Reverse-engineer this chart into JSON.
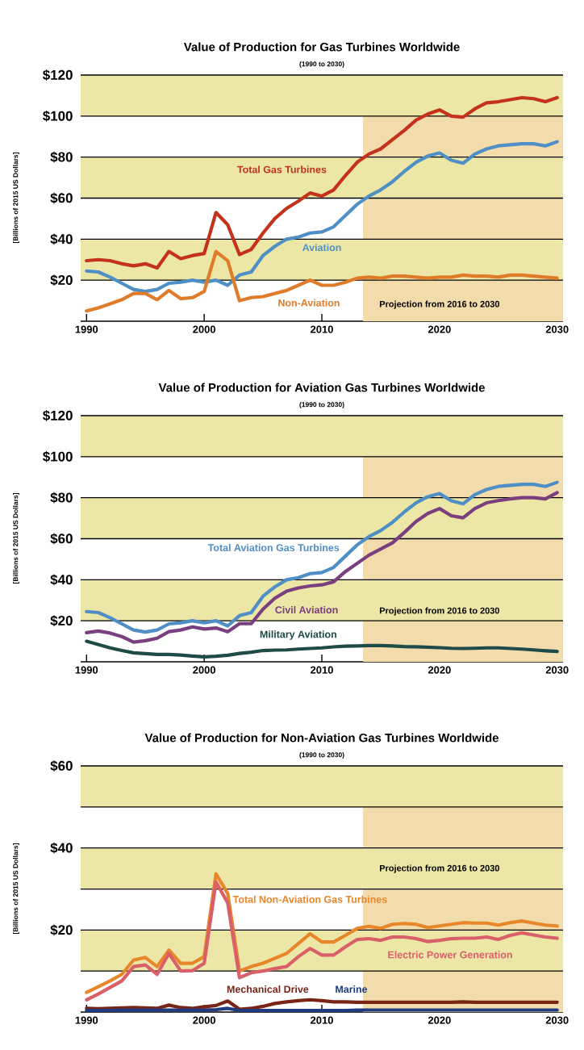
{
  "chart_data": [
    {
      "type": "line",
      "title": "Value of Production for Gas Turbines Worldwide",
      "subtitle": "(1990 to 2030)",
      "ylabel": "[Billions of 2015 US Dollars]",
      "x": [
        1990,
        1991,
        1992,
        1993,
        1994,
        1995,
        1996,
        1997,
        1998,
        1999,
        2000,
        2001,
        2002,
        2003,
        2004,
        2005,
        2006,
        2007,
        2008,
        2009,
        2010,
        2011,
        2012,
        2013,
        2014,
        2015,
        2016,
        2017,
        2018,
        2019,
        2020,
        2021,
        2022,
        2023,
        2024,
        2025,
        2026,
        2027,
        2028,
        2029,
        2030
      ],
      "series": [
        {
          "name": "Total Gas Turbines",
          "color": "#c4321c",
          "values": [
            29.5,
            30,
            29.5,
            28,
            27,
            28,
            26,
            34,
            30.5,
            32,
            33,
            53,
            47,
            32.5,
            35,
            43,
            50,
            55,
            58.5,
            62.5,
            61,
            64,
            71,
            77.5,
            81.5,
            84,
            88.5,
            93,
            98,
            101,
            103,
            100,
            99.5,
            103.5,
            106.5,
            107,
            108,
            109,
            108.5,
            107,
            109
          ]
        },
        {
          "name": "Aviation",
          "color": "#4f8fc6",
          "values": [
            24.5,
            24,
            21.5,
            18.5,
            15.5,
            14.5,
            15.5,
            18.5,
            19,
            20,
            19,
            20,
            17.5,
            22.5,
            24,
            32,
            36.5,
            40,
            41,
            43,
            43.5,
            46,
            51.5,
            57,
            61,
            64,
            68,
            73,
            77.5,
            80.5,
            82,
            78.5,
            77,
            81.5,
            84,
            85.5,
            86,
            86.5,
            86.5,
            85.5,
            87.5
          ]
        },
        {
          "name": "Non-Aviation",
          "color": "#e07b2a",
          "values": [
            5,
            6.5,
            8.5,
            10.5,
            13.5,
            13.5,
            10.5,
            15,
            11,
            11.5,
            14.5,
            34,
            29.5,
            10,
            11.5,
            12,
            13.5,
            15,
            17.5,
            20,
            17.5,
            17.5,
            19,
            21,
            21.5,
            21,
            22,
            22,
            21.5,
            21,
            21.5,
            21.5,
            22.5,
            22,
            22,
            21.5,
            22.5,
            22.5,
            22,
            21.5,
            21
          ]
        }
      ],
      "xlim": [
        1989.5,
        2030.5
      ],
      "ylim": [
        0,
        120
      ],
      "xticks": [
        1990,
        2000,
        2010,
        2020,
        2030
      ],
      "yticks": [
        {
          "value": 20,
          "label": "$20"
        },
        {
          "value": 40,
          "label": "$40"
        },
        {
          "value": 60,
          "label": "$60"
        },
        {
          "value": 80,
          "label": "$80"
        },
        {
          "value": 100,
          "label": "$100"
        },
        {
          "value": 120,
          "label": "$120"
        }
      ],
      "grid": "y",
      "bands": [
        {
          "axis": "x",
          "from": 2013.5,
          "to": 2030.5,
          "label": "Projection from 2016 to 2030",
          "color": "#f2dcac"
        },
        {
          "axis": "y",
          "from": 100,
          "to": 120,
          "color": "#ece7a6"
        },
        {
          "axis": "y",
          "from": 60,
          "to": 80,
          "color": "#ece7a6"
        },
        {
          "axis": "y",
          "from": 20,
          "to": 40,
          "color": "#ece7a6"
        }
      ]
    },
    {
      "type": "line",
      "title": "Value of Production for Aviation Gas Turbines Worldwide",
      "subtitle": "(1990 to 2030)",
      "ylabel": "[Billions of 2015 US Dollars]",
      "x": [
        1990,
        1991,
        1992,
        1993,
        1994,
        1995,
        1996,
        1997,
        1998,
        1999,
        2000,
        2001,
        2002,
        2003,
        2004,
        2005,
        2006,
        2007,
        2008,
        2009,
        2010,
        2011,
        2012,
        2013,
        2014,
        2015,
        2016,
        2017,
        2018,
        2019,
        2020,
        2021,
        2022,
        2023,
        2024,
        2025,
        2026,
        2027,
        2028,
        2029,
        2030
      ],
      "series": [
        {
          "name": "Total Aviation Gas Turbines",
          "color": "#4f8fc6",
          "values": [
            24.5,
            24,
            21.5,
            18.5,
            15.5,
            14.5,
            15.5,
            18.5,
            19,
            20,
            19,
            20,
            17.5,
            22.5,
            24,
            32,
            36.5,
            40,
            41,
            43,
            43.5,
            46,
            51.5,
            57,
            61,
            64,
            68,
            73,
            77.5,
            80.5,
            82,
            78.5,
            77,
            81.5,
            84,
            85.5,
            86,
            86.5,
            86.5,
            85.5,
            87.5
          ]
        },
        {
          "name": "Civil Aviation",
          "color": "#7a3f7e",
          "values": [
            14.2,
            15,
            14,
            12.3,
            9.6,
            10.3,
            11.5,
            14.7,
            15.5,
            17,
            16,
            16.5,
            14.7,
            18.6,
            18.6,
            25.7,
            31,
            34.4,
            36,
            37,
            37.5,
            39,
            44,
            48,
            52,
            55,
            58,
            63,
            68.4,
            72.3,
            74.7,
            71.2,
            70.2,
            74.7,
            77.5,
            78.6,
            79.4,
            80,
            80,
            79.4,
            82.5
          ]
        },
        {
          "name": "Military Aviation",
          "color": "#1e4a47",
          "values": [
            10,
            8.4,
            6.8,
            5.5,
            4.4,
            4,
            3.6,
            3.6,
            3.3,
            2.8,
            2.4,
            2.7,
            3.2,
            4.1,
            4.7,
            5.5,
            5.7,
            5.8,
            6.2,
            6.5,
            6.8,
            7.3,
            7.6,
            7.7,
            7.9,
            7.9,
            7.7,
            7.4,
            7.3,
            7.1,
            6.9,
            6.6,
            6.5,
            6.6,
            6.8,
            6.8,
            6.5,
            6.2,
            5.8,
            5.4,
            5.1
          ]
        }
      ],
      "xlim": [
        1989.5,
        2030.5
      ],
      "ylim": [
        0,
        120
      ],
      "xticks": [
        1990,
        2000,
        2010,
        2020,
        2030
      ],
      "yticks": [
        {
          "value": 20,
          "label": "$20"
        },
        {
          "value": 40,
          "label": "$40"
        },
        {
          "value": 60,
          "label": "$60"
        },
        {
          "value": 80,
          "label": "$80"
        },
        {
          "value": 100,
          "label": "$100"
        },
        {
          "value": 120,
          "label": "$120"
        }
      ],
      "grid": "y",
      "bands": [
        {
          "axis": "x",
          "from": 2013.5,
          "to": 2030.5,
          "label": "Projection from 2016 to 2030",
          "color": "#f2dcac"
        },
        {
          "axis": "y",
          "from": 100,
          "to": 120,
          "color": "#ece7a6"
        },
        {
          "axis": "y",
          "from": 60,
          "to": 80,
          "color": "#ece7a6"
        },
        {
          "axis": "y",
          "from": 20,
          "to": 40,
          "color": "#ece7a6"
        }
      ]
    },
    {
      "type": "line",
      "title": "Value of Production for Non-Aviation Gas Turbines Worldwide",
      "subtitle": "(1990 to 2030)",
      "ylabel": "[Billions of 2015 US Dollars]",
      "x": [
        1990,
        1991,
        1992,
        1993,
        1994,
        1995,
        1996,
        1997,
        1998,
        1999,
        2000,
        2001,
        2002,
        2003,
        2004,
        2005,
        2006,
        2007,
        2008,
        2009,
        2010,
        2011,
        2012,
        2013,
        2014,
        2015,
        2016,
        2017,
        2018,
        2019,
        2020,
        2021,
        2022,
        2023,
        2024,
        2025,
        2026,
        2027,
        2028,
        2029,
        2030
      ],
      "series": [
        {
          "name": "Total Non-Aviation Gas Turbines",
          "color": "#e8862a",
          "values": [
            4.8,
            6.2,
            7.6,
            9.2,
            12.7,
            13.3,
            11.1,
            15.1,
            11.9,
            11.9,
            13.5,
            33.7,
            28.9,
            10,
            11.1,
            11.9,
            13.1,
            14.3,
            16.7,
            19.1,
            17.1,
            17.1,
            18.7,
            20.4,
            20.9,
            20.4,
            21.4,
            21.6,
            21.4,
            20.6,
            21,
            21.4,
            21.8,
            21.7,
            21.7,
            21.2,
            21.8,
            22.2,
            21.7,
            21.2,
            21
          ]
        },
        {
          "name": "Electric Power Generation",
          "color": "#d95f6a",
          "values": [
            3,
            4.4,
            6,
            7.6,
            11.1,
            11.5,
            9.2,
            14.3,
            10,
            10.1,
            11.9,
            31.7,
            26.6,
            8.4,
            9.6,
            10,
            10.6,
            11.1,
            13.5,
            15.5,
            13.9,
            13.9,
            15.9,
            17.7,
            17.9,
            17.5,
            18.3,
            18.3,
            17.9,
            17.2,
            17.5,
            17.9,
            18,
            18,
            18.3,
            17.7,
            18.7,
            19.3,
            18.8,
            18.3,
            18
          ]
        },
        {
          "name": "Mechanical Drive",
          "color": "#7a2416",
          "values": [
            0.9,
            0.8,
            0.9,
            1,
            1.1,
            1,
            0.9,
            1.7,
            1.1,
            0.9,
            1.3,
            1.6,
            2.7,
            0.7,
            0.9,
            1.4,
            2.1,
            2.5,
            2.8,
            3,
            2.8,
            2.5,
            2.5,
            2.4,
            2.4,
            2.4,
            2.4,
            2.4,
            2.4,
            2.4,
            2.4,
            2.4,
            2.5,
            2.4,
            2.4,
            2.4,
            2.4,
            2.4,
            2.4,
            2.4,
            2.4
          ]
        },
        {
          "name": "Marine",
          "color": "#1f3a7e",
          "values": [
            0.4,
            0.4,
            0.4,
            0.5,
            0.5,
            0.5,
            0.5,
            0.5,
            0.5,
            0.5,
            0.5,
            0.6,
            0.9,
            0.4,
            0.4,
            0.4,
            0.4,
            0.4,
            0.4,
            0.4,
            0.4,
            0.4,
            0.4,
            0.5,
            0.5,
            0.5,
            0.5,
            0.5,
            0.5,
            0.5,
            0.5,
            0.5,
            0.5,
            0.5,
            0.5,
            0.5,
            0.5,
            0.5,
            0.5,
            0.5,
            0.5
          ]
        }
      ],
      "xlim": [
        1989.5,
        2030.5
      ],
      "ylim": [
        0,
        60
      ],
      "xticks": [
        1990,
        2000,
        2010,
        2020,
        2030
      ],
      "yticks": [
        {
          "value": 10,
          "label": null
        },
        {
          "value": 20,
          "label": "$20"
        },
        {
          "value": 30,
          "label": null
        },
        {
          "value": 40,
          "label": "$40"
        },
        {
          "value": 50,
          "label": null
        },
        {
          "value": 60,
          "label": "$60"
        }
      ],
      "grid": "y",
      "bands": [
        {
          "axis": "x",
          "from": 2013.5,
          "to": 2030.5,
          "label": "Projection from 2016 to 2030",
          "color": "#f2dcac"
        },
        {
          "axis": "y",
          "from": 50,
          "to": 60,
          "color": "#ece7a6"
        },
        {
          "axis": "y",
          "from": 30,
          "to": 40,
          "color": "#ece7a6"
        },
        {
          "axis": "y",
          "from": 10,
          "to": 20,
          "color": "#ece7a6"
        }
      ]
    }
  ]
}
